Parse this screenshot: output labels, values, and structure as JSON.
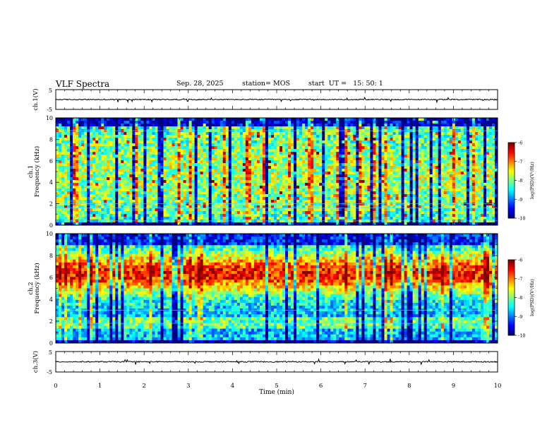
{
  "header": {
    "title": "VLF Spectra",
    "date": "Sep. 28, 2025",
    "station": "station= MOS",
    "start_ut": "start  UT =   15: 50: 1"
  },
  "chart_data": [
    {
      "type": "line",
      "name": "ch1-voltage",
      "ylabel": "ch.1(V)",
      "ylim": [
        -5,
        5
      ],
      "ytick_labels": [
        "5",
        "-5"
      ],
      "baseline": 0
    },
    {
      "type": "heatmap",
      "name": "ch1-spectrogram",
      "ylabel": "ch.1\nFrequency (kHz)",
      "ylim": [
        0,
        10
      ],
      "ytick_labels": [
        "0",
        "2",
        "4",
        "6",
        "8",
        "10"
      ],
      "colorbar": {
        "label": "log(PSD)(V²/Hz)",
        "range": [
          -10,
          -6
        ],
        "tick_labels": [
          "-6",
          "-7",
          "-8",
          "-9",
          "-10"
        ]
      },
      "bands_khz": [
        0.4,
        1.6,
        2.0,
        8.8
      ],
      "dominant_level": "green-blue"
    },
    {
      "type": "heatmap",
      "name": "ch2-spectrogram",
      "ylabel": "ch.2\nFrequency (kHz)",
      "ylim": [
        0,
        10
      ],
      "ytick_labels": [
        "0",
        "2",
        "4",
        "6",
        "8",
        "10"
      ],
      "colorbar": {
        "label": "log(PSD)(V²/Hz)",
        "range": [
          -10,
          -6
        ],
        "tick_labels": [
          "-6",
          "-7",
          "-8",
          "-9",
          "-10"
        ]
      },
      "bands_khz": [
        1.8,
        3.0
      ],
      "dominant_level": "red-yellow 5-8 kHz"
    },
    {
      "type": "line",
      "name": "ch3-voltage",
      "ylabel": "ch.3(V)",
      "ylim": [
        -5,
        5
      ],
      "ytick_labels": [
        "5",
        "-5"
      ],
      "baseline": 0
    }
  ],
  "xaxis": {
    "label": "Time  (min)",
    "xlim": [
      0,
      10
    ],
    "tick_labels": [
      "0",
      "1",
      "2",
      "3",
      "4",
      "5",
      "6",
      "7",
      "8",
      "9",
      "10"
    ]
  },
  "colors": {
    "background": "#ffffff",
    "axis": "#000000"
  }
}
